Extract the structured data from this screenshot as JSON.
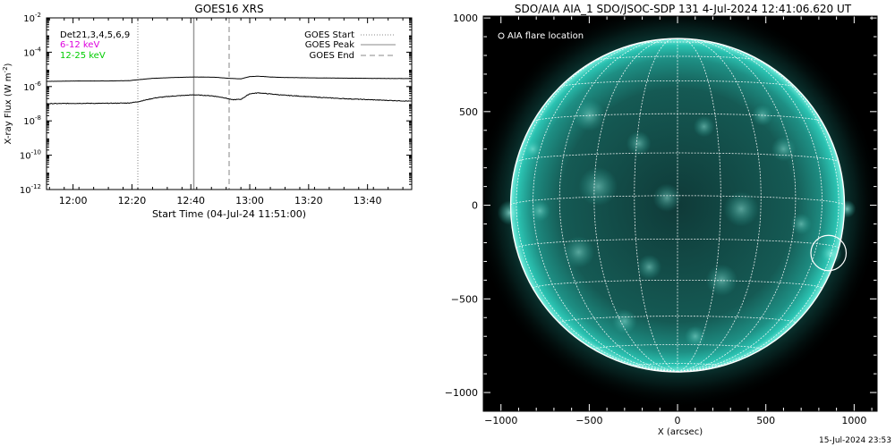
{
  "footer_text": "15-Jul-2024 23:53",
  "chart_data": [
    {
      "type": "line",
      "title": "GOES16 XRS",
      "xlabel": "Start Time (04-Jul-24 11:51:00)",
      "ylabel_main": "X-ray Flux (W m",
      "ylabel_sup": "-2",
      "ylabel_close": ")",
      "x_unit": "minutes after 11:51:00",
      "xlim": [
        0,
        124
      ],
      "y_scale": "log",
      "ylim": [
        1e-12,
        0.01
      ],
      "x_ticks": [
        {
          "value": 9,
          "label": "12:00"
        },
        {
          "value": 29,
          "label": "12:20"
        },
        {
          "value": 49,
          "label": "12:40"
        },
        {
          "value": 69,
          "label": "13:00"
        },
        {
          "value": 89,
          "label": "13:20"
        },
        {
          "value": 109,
          "label": "13:40"
        }
      ],
      "y_ticks": [
        {
          "value": 0.01,
          "base": "10",
          "exp": "-2"
        },
        {
          "value": 0.0001,
          "base": "10",
          "exp": "-4"
        },
        {
          "value": 1e-06,
          "base": "10",
          "exp": "-6"
        },
        {
          "value": 1e-08,
          "base": "10",
          "exp": "-8"
        },
        {
          "value": 1e-10,
          "base": "10",
          "exp": "-10"
        },
        {
          "value": 1e-12,
          "base": "10",
          "exp": "-12"
        }
      ],
      "legend_left": [
        {
          "text": "Det21,3,4,5,6,9",
          "color": "#000000"
        },
        {
          "text": "6-12 keV",
          "color": "#dd00dd"
        },
        {
          "text": "12-25 keV",
          "color": "#00cc00"
        }
      ],
      "legend_right": [
        {
          "text": "GOES Start",
          "style": "dotted"
        },
        {
          "text": "GOES Peak",
          "style": "solid"
        },
        {
          "text": "GOES End",
          "style": "dashed"
        }
      ],
      "markers": [
        {
          "name": "GOES Start",
          "x": 31,
          "style": "dotted",
          "color": "#999999"
        },
        {
          "name": "GOES Peak",
          "x": 50,
          "style": "solid",
          "color": "#999999"
        },
        {
          "name": "GOES End",
          "x": 62,
          "style": "dashed",
          "color": "#999999"
        }
      ],
      "series": [
        {
          "channel": "long",
          "x": [
            0,
            10,
            20,
            28,
            31,
            36,
            42,
            50,
            57,
            62,
            66,
            69,
            72,
            76,
            80,
            90,
            100,
            110,
            124
          ],
          "y": [
            2e-06,
            2.1e-06,
            2.1e-06,
            2.2e-06,
            2.5e-06,
            3e-06,
            3.3e-06,
            3.6e-06,
            3.5e-06,
            3e-06,
            2.8e-06,
            3.8e-06,
            4e-06,
            3.6e-06,
            3.4e-06,
            3.2e-06,
            3.1e-06,
            3e-06,
            2.9e-06
          ],
          "color": "#000000"
        },
        {
          "channel": "short",
          "x": [
            0,
            10,
            20,
            28,
            31,
            34,
            37,
            42,
            50,
            56,
            60,
            63,
            66,
            69,
            72,
            76,
            80,
            90,
            100,
            110,
            124
          ],
          "y": [
            1e-07,
            1.05e-07,
            1.05e-07,
            1.1e-07,
            1.3e-07,
            1.7e-07,
            2.2e-07,
            2.7e-07,
            3.3e-07,
            2.9e-07,
            2.3e-07,
            1.7e-07,
            1.8e-07,
            3.8e-07,
            4.3e-07,
            3.7e-07,
            3.2e-07,
            2.5e-07,
            2e-07,
            1.7e-07,
            1.4e-07
          ],
          "color": "#000000"
        }
      ]
    },
    {
      "type": "image",
      "title": "SDO/AIA AIA_1 SDO/JSOC-SDP 131  4-Jul-2024 12:41:06.620 UT",
      "xlabel": "X (arcsec)",
      "xlim": [
        -1100,
        1130
      ],
      "ylim": [
        -1100,
        1010
      ],
      "x_ticks": [
        -1000,
        -500,
        0,
        500,
        1000
      ],
      "y_ticks": [
        -1000,
        -500,
        0,
        500,
        1000
      ],
      "legend": [
        {
          "text": "AIA flare location",
          "symbol": "circle"
        }
      ],
      "solar_radius_arcsec": 945,
      "flare_location": [
        855,
        -255
      ],
      "flare_circle_radius_arcsec": 100,
      "color": "#1fb8a8"
    }
  ]
}
